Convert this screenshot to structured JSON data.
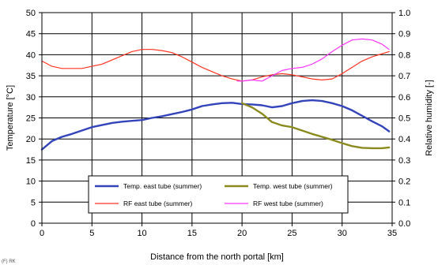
{
  "chart_data": {
    "type": "line",
    "xlabel": "Distance from the north portal [km]",
    "ylabel_left": "Temperature [°C]",
    "ylabel_right": "Relative humidity [-]",
    "xlim": [
      0,
      35
    ],
    "ylim_left": [
      0,
      50
    ],
    "ylim_right": [
      0.0,
      1.0
    ],
    "x_ticks": [
      "0",
      "5",
      "10",
      "15",
      "20",
      "25",
      "30",
      "35"
    ],
    "y_left_ticks": [
      "0",
      "5",
      "10",
      "15",
      "20",
      "25",
      "30",
      "35",
      "40",
      "45",
      "50"
    ],
    "y_right_ticks": [
      "0.0",
      "0.1",
      "0.2",
      "0.3",
      "0.4",
      "0.5",
      "0.6",
      "0.7",
      "0.8",
      "0.9",
      "1.0"
    ],
    "grid": true,
    "legend_position": "bottom-center",
    "corner_note": "(F) RK",
    "series": [
      {
        "name": "Temp. east tube (summer)",
        "axis": "left",
        "color": "#3344bb",
        "x": [
          0,
          1,
          2,
          3,
          4,
          5,
          6,
          7,
          8,
          9,
          10,
          11,
          12,
          13,
          14,
          15,
          16,
          17,
          18,
          19,
          20,
          21,
          22,
          23,
          24,
          25,
          26,
          27,
          28,
          29,
          30,
          31,
          32,
          33,
          34,
          34.7
        ],
        "y": [
          17.5,
          19.5,
          20.5,
          21.2,
          22,
          22.8,
          23.3,
          23.8,
          24.1,
          24.3,
          24.5,
          25,
          25.4,
          25.9,
          26.4,
          27,
          27.8,
          28.2,
          28.5,
          28.6,
          28.3,
          28.2,
          28,
          27.5,
          27.8,
          28.5,
          29,
          29.2,
          29,
          28.5,
          27.8,
          26.8,
          25.5,
          24.2,
          23,
          21.8
        ]
      },
      {
        "name": "Temp. west tube (summer)",
        "axis": "left",
        "color": "#8a8a1f",
        "x": [
          20,
          21,
          22,
          23,
          24,
          25,
          26,
          27,
          28,
          29,
          30,
          31,
          32,
          33,
          34,
          34.7
        ],
        "y": [
          28.5,
          27.5,
          26,
          24,
          23.2,
          22.8,
          22,
          21.2,
          20.5,
          19.8,
          19,
          18.3,
          17.9,
          17.8,
          17.8,
          18
        ]
      },
      {
        "name": "RF east tube (summer)",
        "axis": "right",
        "color": "#ff3322",
        "x": [
          0,
          1,
          2,
          3,
          4,
          5,
          6,
          7,
          8,
          9,
          10,
          11,
          12,
          13,
          14,
          15,
          16,
          17,
          18,
          19,
          20,
          21,
          22,
          23,
          24,
          25,
          26,
          27,
          28,
          29,
          30,
          31,
          32,
          33,
          34,
          34.7
        ],
        "y": [
          0.77,
          0.745,
          0.735,
          0.735,
          0.735,
          0.745,
          0.755,
          0.775,
          0.795,
          0.815,
          0.825,
          0.825,
          0.82,
          0.81,
          0.79,
          0.765,
          0.74,
          0.72,
          0.7,
          0.685,
          0.675,
          0.68,
          0.695,
          0.705,
          0.71,
          0.705,
          0.695,
          0.685,
          0.68,
          0.685,
          0.71,
          0.74,
          0.77,
          0.79,
          0.805,
          0.815
        ]
      },
      {
        "name": "RF west tube (summer)",
        "axis": "right",
        "color": "#ff33ff",
        "x": [
          19.5,
          20,
          21,
          22,
          23,
          24,
          25,
          26,
          27,
          28,
          29,
          30,
          31,
          32,
          33,
          34,
          34.7
        ],
        "y": [
          0.675,
          0.675,
          0.68,
          0.675,
          0.7,
          0.725,
          0.735,
          0.74,
          0.755,
          0.78,
          0.815,
          0.845,
          0.87,
          0.875,
          0.87,
          0.85,
          0.825
        ]
      }
    ]
  }
}
